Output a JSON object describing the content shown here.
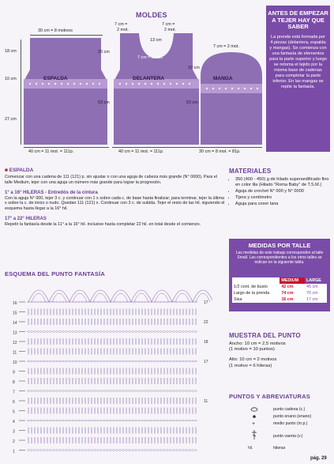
{
  "page": {
    "section_title": "MOLDES",
    "page_number": "pág. 29"
  },
  "sidebar": {
    "title": "ANTES DE EMPEZAR A TEJER HAY QUE SABER",
    "text": "La prenda está formada por 4 piezas (delantera, espalda y mangas). Se comienza con una fantasía de elementos para la parte superior y luego se retoma el tejido por la misma base de cadenas para completar la parte inferior. En las mangas se repite la fantasía."
  },
  "moldes": {
    "espalda": {
      "label": "ESPALDA",
      "top": "30 cm = 8 motivos",
      "left_top": "18 cm",
      "left_mid": "10 cm",
      "left_bot": "27 cm",
      "bottom": "40 cm = 11 mot. = 111p."
    },
    "delantera": {
      "label": "DELANTERA",
      "neck1": "7 cm =",
      "neck1b": "2 mot.",
      "neck2": "7 cm =",
      "neck2b": "2 mot.",
      "neck_depth": "13 cm",
      "neck_bottom": "7 cm = 2 mot.",
      "left": "20 cm",
      "right": "53 cm",
      "bottom": "40 cm = 11 mot. = 111p."
    },
    "manga": {
      "label": "MANGA",
      "top": "7 cm = 2 mot.",
      "left": "10 cm",
      "right": "53 cm",
      "bottom": "30 cm = 8 mot. = 81p."
    }
  },
  "instructions": {
    "espalda_title": "ESPALDA",
    "espalda_text": "Comenzar con una cadena de 111 (121) p. sin ajustar o con una aguja de cabeza más grande (N° 0000). Para el talle Medium, tejer con una aguja un número más grande para lograr la progresión.",
    "h1_title": "1° a 16° HILERAS - Entredós de la cintura",
    "h1_text": "Con la aguja N° 000, tejer 3 c. y continuar con 1 x sobre cada c. de base hasta finalizar; para terminar, tejer la última x sobre la c. de inicio o nudo. Quedan 111 (121) x. Continuar con 3 c. de subida. Tejer el resto de las hil. siguiendo el esquema hasta llegar a la 16° hil.",
    "h2_title": "17° a 22° HILERAS",
    "h2_text": "Repetir la fantasía desde la 11° a la 16° hil. inclusive hasta completar 22 hil. en total desde el comienzo.",
    "esquema_title": "ESQUEMA DEL PUNTO FANTASÍA"
  },
  "materiales": {
    "title": "MATERIALES",
    "items": [
      "350 (400 - 450) g de hilado supersedificado fino en color lila (Hilado \"Roma Baby\" de T.S.M.)",
      "Aguja de crochet N° 000 y N° 0000",
      "Tijera y centímetro",
      "Aguja para coser lana"
    ]
  },
  "medidas": {
    "title": "MEDIDAS POR TALLE",
    "sub": "Las medidas de este trabajo corresponden al talle Small. Las correspondientes a los otros talles se indican en la siguiente tabla.",
    "headers": [
      "",
      "MEDIUM",
      "LARGE"
    ],
    "rows": [
      [
        "1/2 cont. de busto",
        "42 cm",
        "45 cm"
      ],
      [
        "Largo de la prenda",
        "74 cm",
        "76 cm"
      ],
      [
        "Sisa",
        "16 cm",
        "17 cm"
      ]
    ]
  },
  "muestra": {
    "title": "MUESTRA DEL PUNTO",
    "ancho": "Ancho: 10 cm = 2,5 motivos",
    "ancho2": "(1 motivo = 10 puntos)",
    "alto": "Alto: 10 cm = 2 motivos",
    "alto2": "(1 motivo = 6 hileras)"
  },
  "abreviaturas": {
    "title": "PUNTOS Y ABREVIATURAS",
    "items": [
      "punto cadena (c.)",
      "punto enano (enano)",
      "medio punto (m.p.)",
      "punto vareta (v.)",
      "hileras"
    ],
    "hil_label": "hil."
  },
  "chart": {
    "row_labels_left": [
      "16",
      "15",
      "14",
      "13",
      "12",
      "11",
      "10",
      "9",
      "8",
      "7",
      "6",
      "5",
      "4",
      "3",
      "2",
      "1"
    ],
    "row_labels_right": [
      "17",
      "22",
      "18",
      "17",
      "11"
    ]
  },
  "colors": {
    "purple": "#7b4ca7",
    "piece": "#8e6fb3",
    "accent": "#c8102e"
  }
}
